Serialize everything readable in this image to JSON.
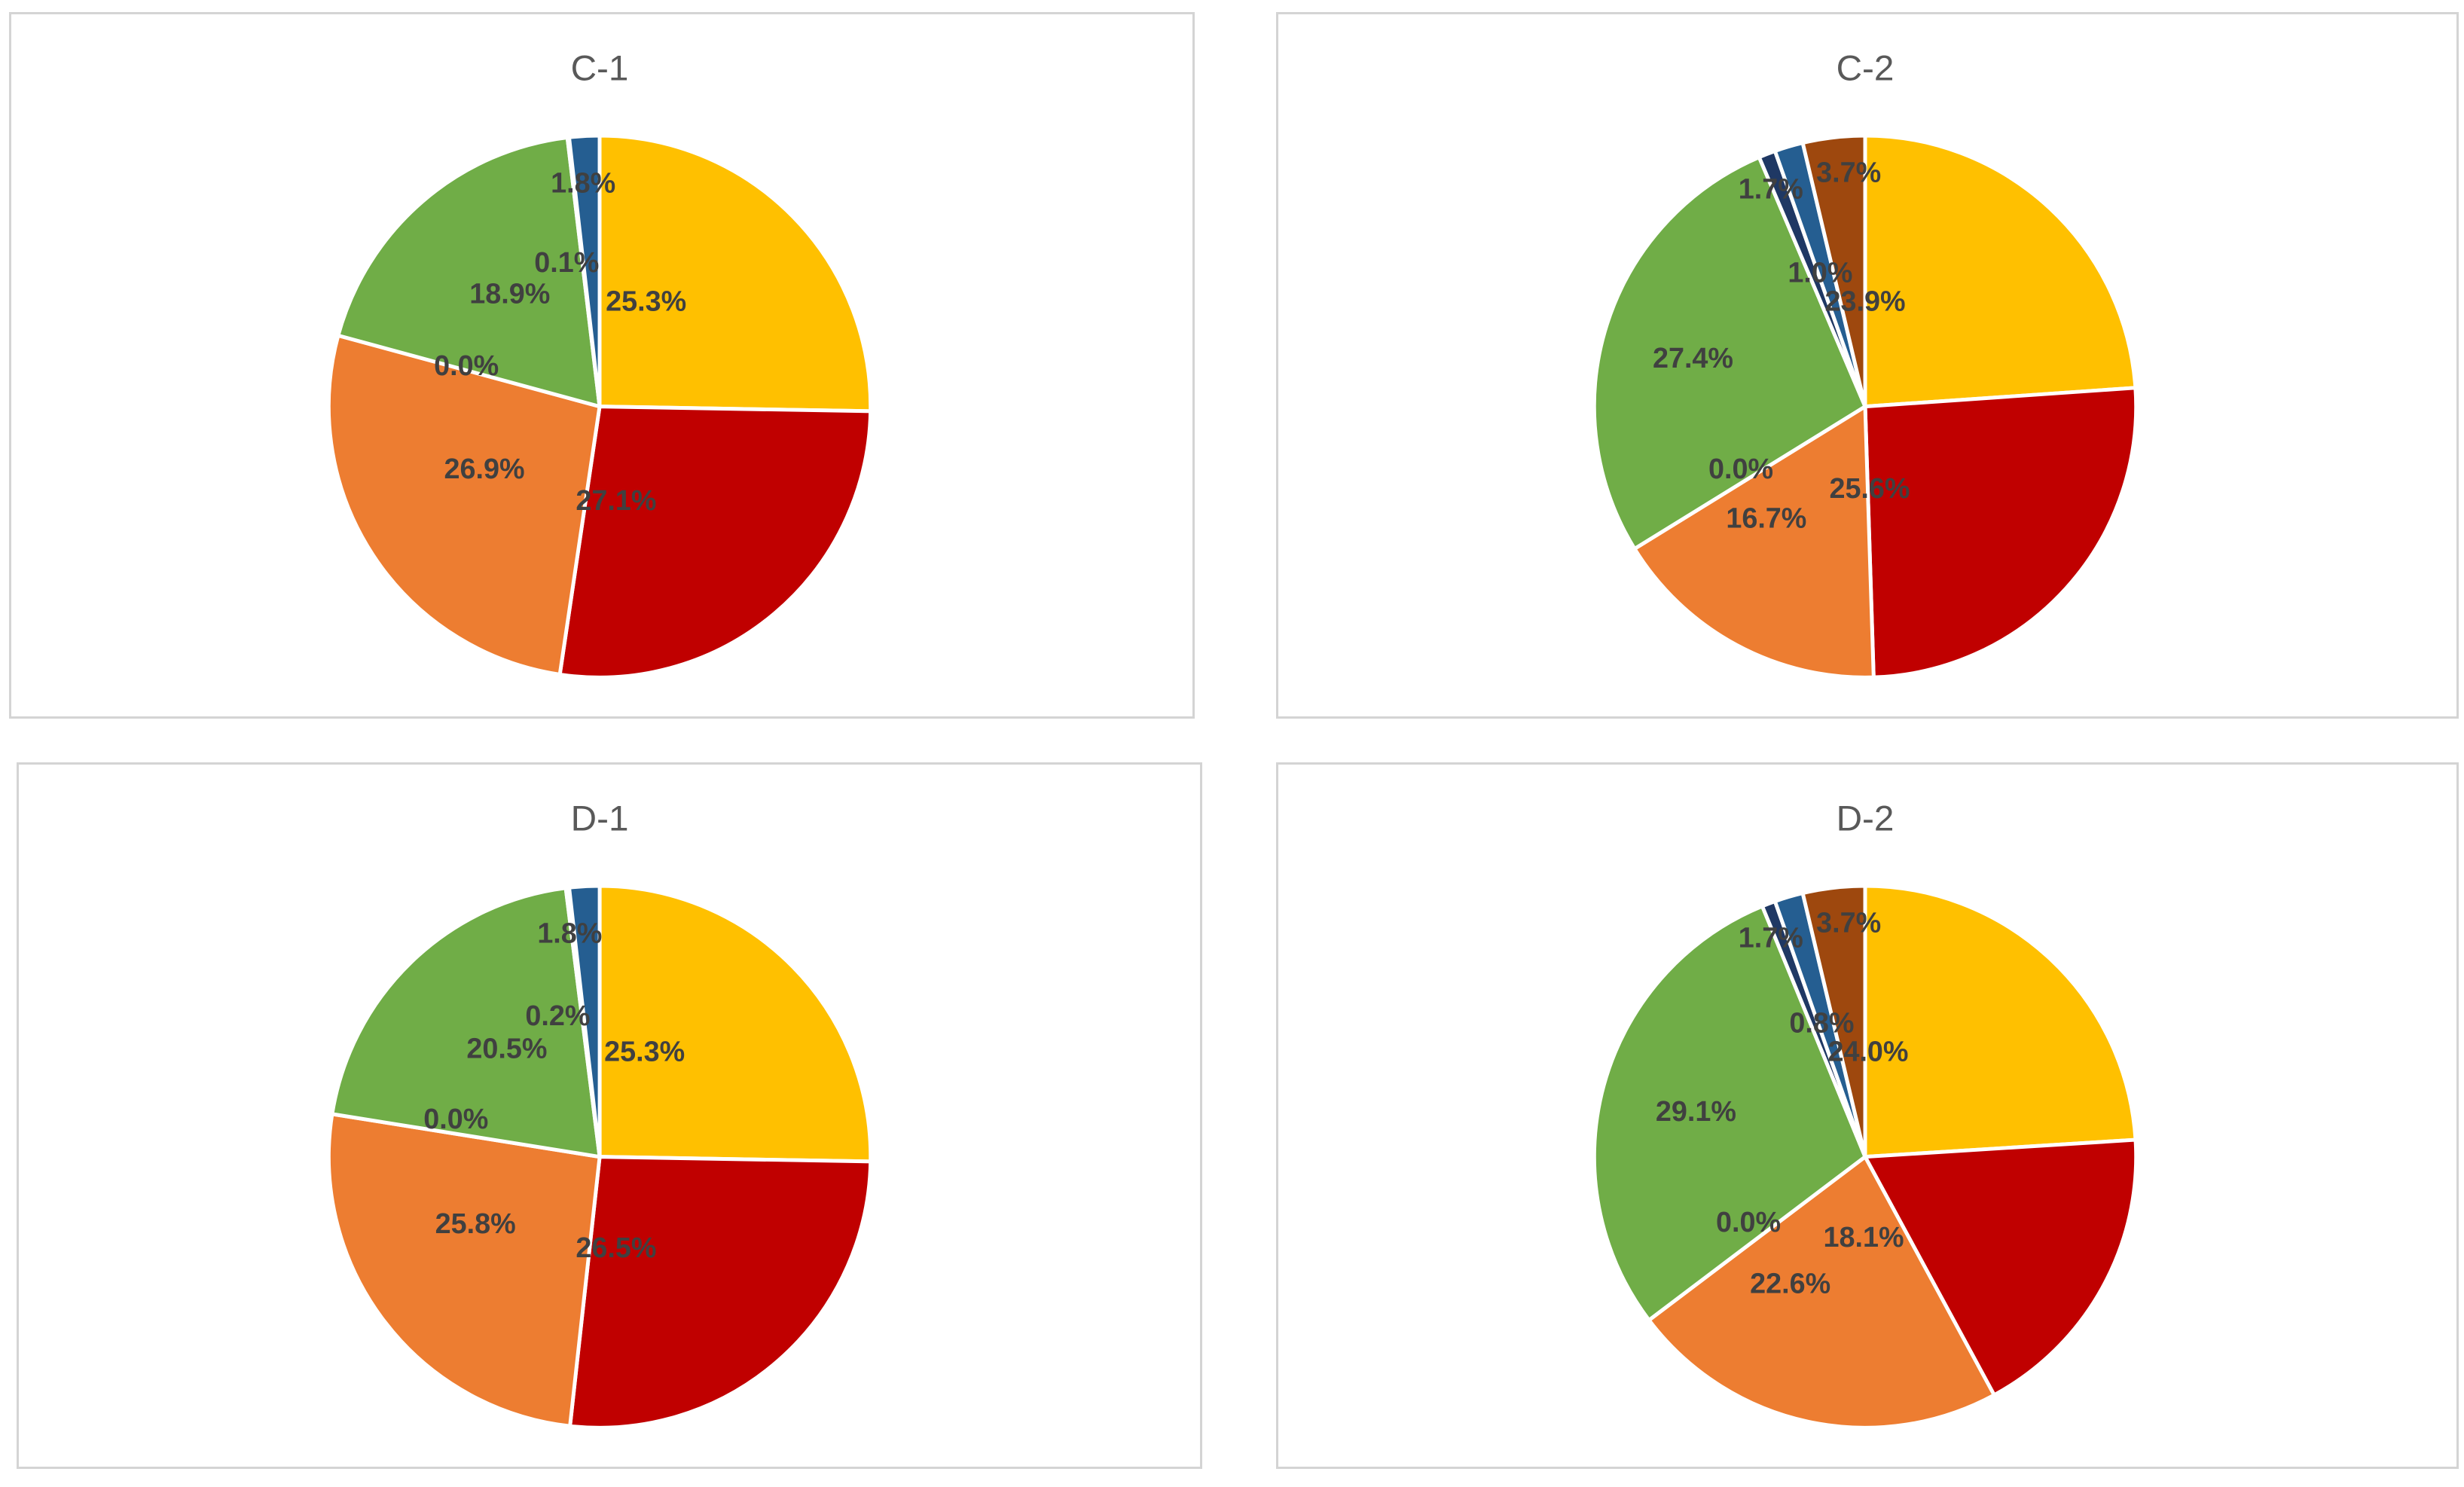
{
  "chart_data": [
    {
      "type": "pie",
      "title": "C-1",
      "categories": [
        "Yellow",
        "Red",
        "Orange",
        "Gray",
        "Green",
        "White",
        "Blue"
      ],
      "values": [
        25.3,
        27.1,
        26.9,
        0.0,
        18.9,
        0.1,
        1.8
      ],
      "labels": [
        "25.3%",
        "27.1%",
        "26.9%",
        "0.0%",
        "18.9%",
        "0.1%",
        "1.8%"
      ]
    },
    {
      "type": "pie",
      "title": "C-2",
      "categories": [
        "Yellow",
        "Red",
        "Orange",
        "Gray",
        "Green",
        "Navy",
        "Blue",
        "Brown"
      ],
      "values": [
        23.9,
        25.6,
        16.7,
        0.0,
        27.4,
        1.0,
        1.7,
        3.7
      ],
      "labels": [
        "23.9%",
        "25.6%",
        "16.7%",
        "0.0%",
        "27.4%",
        "1.0%",
        "1.7%",
        "3.7%"
      ]
    },
    {
      "type": "pie",
      "title": "D-1",
      "categories": [
        "Yellow",
        "Red",
        "Orange",
        "Gray",
        "Green",
        "White",
        "Blue"
      ],
      "values": [
        25.3,
        26.5,
        25.8,
        0.0,
        20.5,
        0.2,
        1.8
      ],
      "labels": [
        "25.3%",
        "26.5%",
        "25.8%",
        "0.0%",
        "20.5%",
        "0.2%",
        "1.8%"
      ]
    },
    {
      "type": "pie",
      "title": "D-2",
      "categories": [
        "Yellow",
        "Red",
        "Orange",
        "Gray",
        "Green",
        "Navy",
        "Blue",
        "Brown"
      ],
      "values": [
        24.0,
        18.1,
        22.6,
        0.0,
        29.1,
        0.8,
        1.7,
        3.7
      ],
      "labels": [
        "24.0%",
        "18.1%",
        "22.6%",
        "0.0%",
        "29.1%",
        "0.8%",
        "1.7%",
        "3.7%"
      ]
    }
  ],
  "colors": {
    "Yellow": "#ffc000",
    "Red": "#c00000",
    "Orange": "#ed7d31",
    "Gray": "#a5a5a5",
    "Green": "#70ad47",
    "White": "#ffffff",
    "Navy": "#1f3864",
    "Blue": "#255e91",
    "Brown": "#9e480e"
  }
}
